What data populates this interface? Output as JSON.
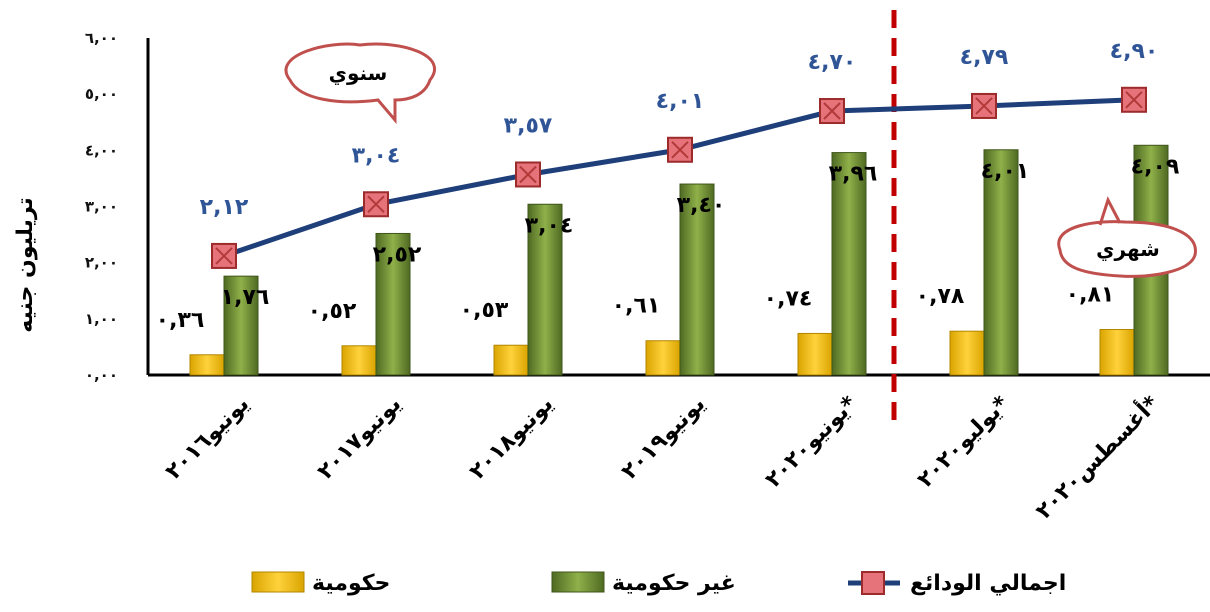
{
  "chart_data": {
    "type": "bar",
    "ylabel": "تريليون جنيه",
    "ylim": [
      0,
      6
    ],
    "ytick_labels": [
      "٠,٠٠",
      "١,٠٠",
      "٢,٠٠",
      "٣,٠٠",
      "٤,٠٠",
      "٥,٠٠",
      "٦,٠٠"
    ],
    "categories": [
      "يونيو٢٠١٦",
      "يونيو٢٠١٧",
      "يونيو٢٠١٨",
      "يونيو٢٠١٩",
      "يونيو٢٠٢٠*",
      "يوليو٢٠٢٠*",
      "أغسطس٢٠٢٠*"
    ],
    "series": [
      {
        "name": "حكومية",
        "kind": "bar",
        "color": "#ffc000",
        "values": [
          0.36,
          0.52,
          0.53,
          0.61,
          0.74,
          0.78,
          0.81
        ],
        "labels": [
          "٠,٣٦",
          "٠,٥٢",
          "٠,٥٣",
          "٠,٦١",
          "٠,٧٤",
          "٠,٧٨",
          "٠,٨١"
        ]
      },
      {
        "name": "غير حكومية",
        "kind": "bar",
        "color": "#77933c",
        "values": [
          1.76,
          2.52,
          3.04,
          3.4,
          3.96,
          4.01,
          4.09
        ],
        "labels": [
          "١,٧٦",
          "٢,٥٢",
          "٣,٠٤",
          "٣,٤٠",
          "٣,٩٦",
          "٤,٠١",
          "٤,٠٩"
        ]
      },
      {
        "name": "اجمالي الودائع",
        "kind": "line",
        "color": "#1f3f7a",
        "marker_color": "#e6737a",
        "values": [
          2.12,
          3.04,
          3.57,
          4.01,
          4.7,
          4.79,
          4.9
        ],
        "labels": [
          "٢,١٢",
          "٣,٠٤",
          "٣,٥٧",
          "٤,٠١",
          "٤,٧٠",
          "٤,٧٩",
          "٤,٩٠"
        ]
      }
    ],
    "annotations": {
      "annual": "سنوي",
      "monthly": "شهري"
    },
    "divider": {
      "after_category_index": 4,
      "color": "#c00000",
      "style": "dashed"
    },
    "grid": false,
    "legend_position": "bottom"
  }
}
